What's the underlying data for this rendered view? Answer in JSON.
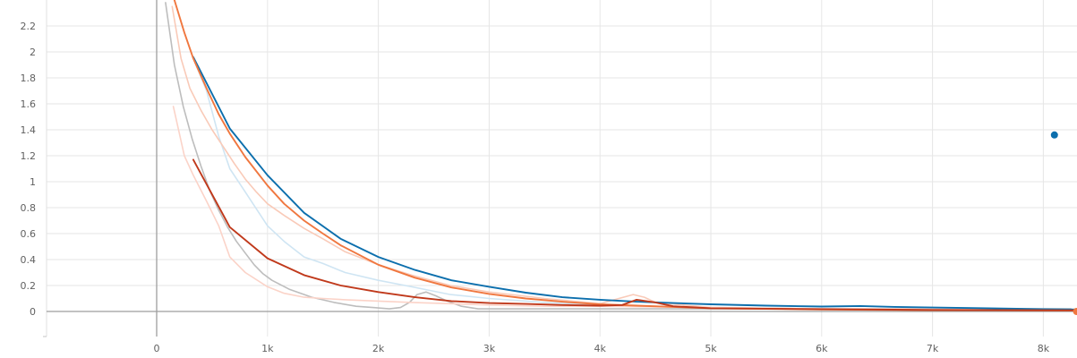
{
  "chart_data": {
    "type": "line",
    "title": "",
    "xlabel": "",
    "ylabel": "",
    "xlim": [
      -1000,
      8300
    ],
    "ylim": [
      -0.2,
      2.4
    ],
    "grid": true,
    "x_ticks": [
      {
        "value": 0,
        "label": "0"
      },
      {
        "value": 1000,
        "label": "1k"
      },
      {
        "value": 2000,
        "label": "2k"
      },
      {
        "value": 3000,
        "label": "3k"
      },
      {
        "value": 4000,
        "label": "4k"
      },
      {
        "value": 5000,
        "label": "5k"
      },
      {
        "value": 6000,
        "label": "6k"
      },
      {
        "value": 7000,
        "label": "7k"
      },
      {
        "value": 8000,
        "label": "8k"
      }
    ],
    "y_ticks": [
      {
        "value": 0,
        "label": "0"
      },
      {
        "value": 0.2,
        "label": "0.2"
      },
      {
        "value": 0.4,
        "label": "0.4"
      },
      {
        "value": 0.6,
        "label": "0.6"
      },
      {
        "value": 0.8,
        "label": "0.8"
      },
      {
        "value": 1.0,
        "label": "1"
      },
      {
        "value": 1.2,
        "label": "1.2"
      },
      {
        "value": 1.4,
        "label": "1.4"
      },
      {
        "value": 1.6,
        "label": "1.6"
      },
      {
        "value": 1.8,
        "label": "1.8"
      },
      {
        "value": 2.0,
        "label": "2"
      },
      {
        "value": 2.2,
        "label": "2.2"
      }
    ],
    "series": [
      {
        "color": "#bdbdbd",
        "width": 1.6,
        "x": [
          80,
          160,
          240,
          320,
          400,
          480,
          560,
          640,
          720,
          800,
          880,
          960,
          1040,
          1200,
          1400,
          1600,
          1800,
          1950,
          2100,
          2200,
          2280,
          2350,
          2430,
          2520,
          2620,
          2750,
          2900,
          3100,
          3400,
          4000,
          5000,
          6000,
          7000,
          8250
        ],
        "y": [
          2.38,
          1.9,
          1.58,
          1.33,
          1.12,
          0.93,
          0.78,
          0.65,
          0.54,
          0.45,
          0.36,
          0.29,
          0.24,
          0.17,
          0.11,
          0.07,
          0.04,
          0.03,
          0.02,
          0.03,
          0.07,
          0.13,
          0.15,
          0.12,
          0.08,
          0.04,
          0.02,
          0.02,
          0.02,
          0.02,
          0.02,
          0.02,
          0.02,
          0.02
        ]
      },
      {
        "color": "#cfe5f3",
        "width": 1.6,
        "x": [
          330,
          450,
          560,
          660,
          800,
          1000,
          1150,
          1330,
          1500,
          1700,
          2000,
          2300,
          2650,
          3000,
          3500,
          4000,
          5000,
          6000,
          7000,
          8250
        ],
        "y": [
          1.95,
          1.7,
          1.35,
          1.1,
          0.92,
          0.66,
          0.54,
          0.42,
          0.37,
          0.3,
          0.24,
          0.19,
          0.13,
          0.1,
          0.07,
          0.05,
          0.03,
          0.02,
          0.02,
          0.01
        ]
      },
      {
        "color": "#f9cab8",
        "width": 1.6,
        "x": [
          140,
          220,
          300,
          400,
          500,
          600,
          700,
          800,
          900,
          1000,
          1150,
          1330,
          1500,
          1700,
          2000,
          2300,
          2650,
          3000,
          3500,
          4000,
          4300,
          4400,
          4500,
          5000,
          6000,
          7000,
          8250
        ],
        "y": [
          2.35,
          1.95,
          1.72,
          1.55,
          1.4,
          1.27,
          1.14,
          1.02,
          0.92,
          0.83,
          0.74,
          0.64,
          0.56,
          0.46,
          0.36,
          0.28,
          0.2,
          0.15,
          0.1,
          0.06,
          0.13,
          0.11,
          0.07,
          0.03,
          0.02,
          0.01,
          0.01
        ]
      },
      {
        "color": "#fbd3c8",
        "width": 1.6,
        "x": [
          150,
          250,
          330,
          450,
          560,
          660,
          800,
          1000,
          1150,
          1330,
          1500,
          1700,
          2000,
          2300,
          2650,
          3000,
          3500,
          4000,
          5000,
          6000,
          7000,
          8250
        ],
        "y": [
          1.58,
          1.2,
          1.05,
          0.85,
          0.66,
          0.42,
          0.3,
          0.19,
          0.14,
          0.11,
          0.1,
          0.09,
          0.08,
          0.07,
          0.06,
          0.05,
          0.04,
          0.04,
          0.03,
          0.02,
          0.02,
          0.01
        ]
      },
      {
        "color": "#0c6fad",
        "width": 1.9,
        "x": [
          330,
          660,
          1000,
          1330,
          1660,
          2000,
          2330,
          2660,
          3000,
          3330,
          3660,
          4000,
          4330,
          4660,
          5000,
          5500,
          6000,
          6350,
          6660,
          7000,
          7500,
          8000,
          8300
        ],
        "y": [
          1.96,
          1.41,
          1.05,
          0.76,
          0.56,
          0.42,
          0.32,
          0.24,
          0.19,
          0.145,
          0.11,
          0.09,
          0.075,
          0.065,
          0.055,
          0.045,
          0.038,
          0.042,
          0.035,
          0.03,
          0.025,
          0.018,
          0.015
        ]
      },
      {
        "color": "#f0773f",
        "width": 1.9,
        "x": [
          160,
          250,
          330,
          450,
          560,
          660,
          800,
          1000,
          1150,
          1330,
          1500,
          1660,
          2000,
          2330,
          2660,
          3000,
          3330,
          3660,
          4000,
          4330,
          4660,
          5000,
          5500,
          6000,
          7000,
          8300
        ],
        "y": [
          2.4,
          2.15,
          1.95,
          1.72,
          1.52,
          1.37,
          1.19,
          0.97,
          0.83,
          0.7,
          0.6,
          0.51,
          0.36,
          0.26,
          0.185,
          0.135,
          0.1,
          0.075,
          0.055,
          0.045,
          0.035,
          0.025,
          0.02,
          0.015,
          0.01,
          0.008
        ]
      },
      {
        "color": "#c0391b",
        "width": 1.9,
        "x": [
          330,
          660,
          1000,
          1330,
          1660,
          2000,
          2330,
          2660,
          3000,
          3330,
          3660,
          4000,
          4200,
          4330,
          4500,
          4660,
          5000,
          6000,
          7000,
          8300
        ],
        "y": [
          1.17,
          0.65,
          0.41,
          0.28,
          0.2,
          0.15,
          0.11,
          0.08,
          0.065,
          0.058,
          0.05,
          0.045,
          0.05,
          0.09,
          0.07,
          0.04,
          0.025,
          0.018,
          0.012,
          0.008
        ]
      }
    ],
    "points": [
      {
        "x": 8100,
        "y": 1.36,
        "color": "#0c6fad"
      },
      {
        "x": 8300,
        "y": 0.0,
        "color": "#f0773f"
      }
    ]
  }
}
